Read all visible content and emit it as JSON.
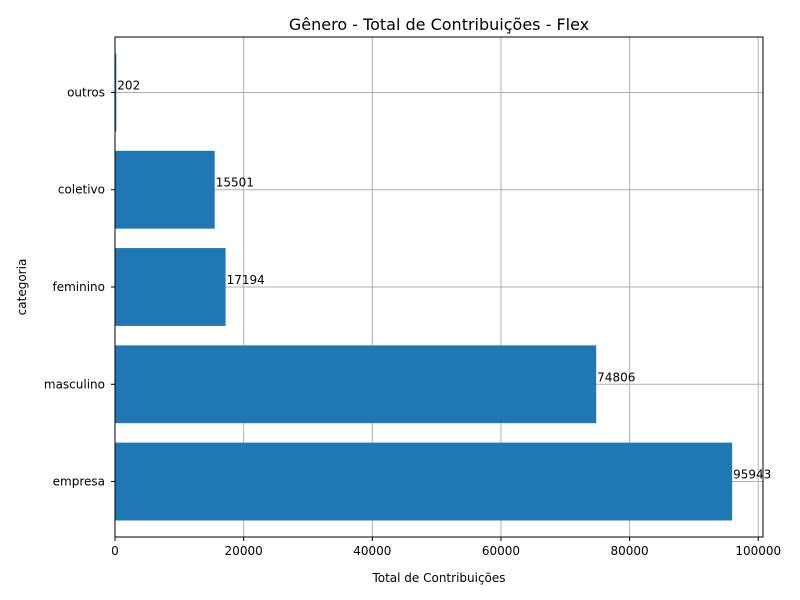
{
  "chart_data": {
    "type": "bar",
    "orientation": "horizontal",
    "title": "Gênero - Total de Contribuições - Flex",
    "xlabel": "Total de Contribuições",
    "ylabel": "categoria",
    "categories": [
      "empresa",
      "masculino",
      "feminino",
      "coletivo",
      "outros"
    ],
    "values": [
      95943,
      74806,
      17194,
      15501,
      202
    ],
    "data_labels": [
      "95943",
      "74806",
      "17194",
      "15501",
      "202"
    ],
    "xlim": [
      0,
      100000
    ],
    "xticks": [
      0,
      20000,
      40000,
      60000,
      80000,
      100000
    ],
    "xtick_labels": [
      "0",
      "20000",
      "40000",
      "60000",
      "80000",
      "100000"
    ],
    "grid": true,
    "bar_color": "#1f77b4"
  }
}
